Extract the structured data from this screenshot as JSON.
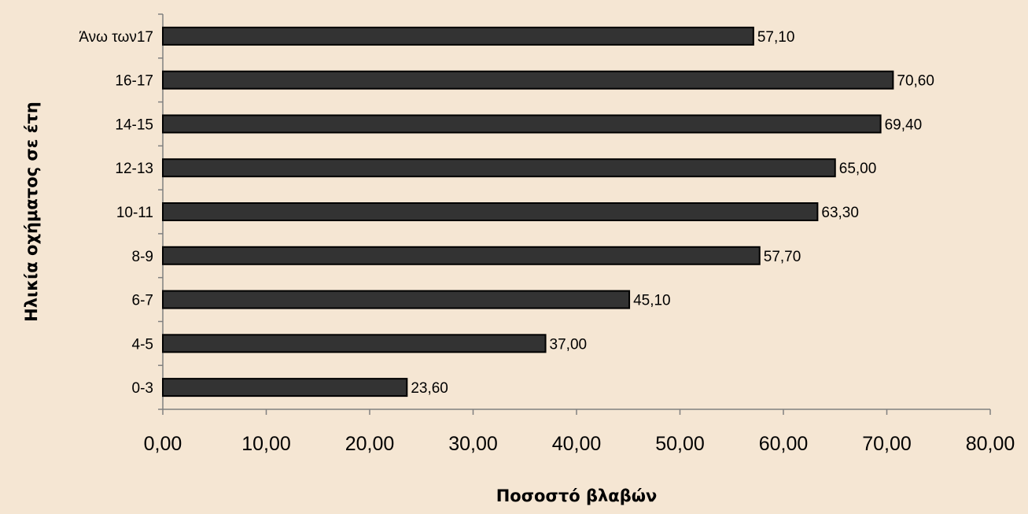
{
  "chart_data": {
    "type": "bar",
    "orientation": "horizontal",
    "title": "",
    "xlabel": "Ποσοστό βλαβών",
    "ylabel": "Ηλικία οχήματος σε έτη",
    "categories": [
      "0-3",
      "4-5",
      "6-7",
      "8-9",
      "10-11",
      "12-13",
      "14-15",
      "16-17",
      "Άνω των17"
    ],
    "values": [
      23.6,
      37.0,
      45.1,
      57.7,
      63.3,
      65.0,
      69.4,
      70.6,
      57.1
    ],
    "value_labels": [
      "23,60",
      "37,00",
      "45,10",
      "57,70",
      "63,30",
      "65,00",
      "69,40",
      "70,60",
      "57,10"
    ],
    "xlim": [
      0,
      80
    ],
    "xticks": [
      0,
      10,
      20,
      30,
      40,
      50,
      60,
      70,
      80
    ],
    "xtick_labels": [
      "0,00",
      "10,00",
      "20,00",
      "30,00",
      "40,00",
      "50,00",
      "60,00",
      "70,00",
      "80,00"
    ],
    "grid": false,
    "legend": "none",
    "colors": {
      "background": "#f5e6d3",
      "bar_fill": "#333333",
      "bar_stroke": "#000000",
      "axis": "#808080"
    }
  }
}
